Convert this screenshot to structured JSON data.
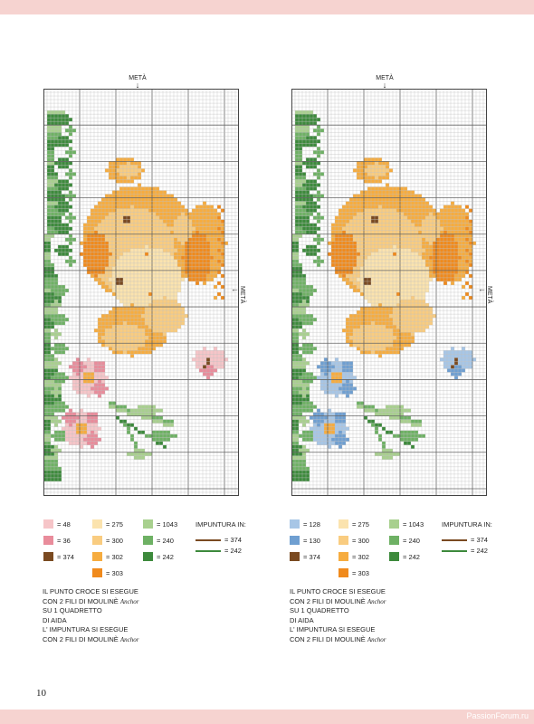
{
  "charts": [
    {
      "meta_top": "METÀ",
      "meta_side": "METÀ",
      "variant": "pink"
    },
    {
      "meta_top": "METÀ",
      "meta_side": "METÀ",
      "variant": "blue"
    }
  ],
  "colors": {
    "orange_dark": "#f08a1c",
    "orange_mid": "#f6ac3f",
    "orange_light": "#f9cc80",
    "cream": "#fbe3ae",
    "brown": "#7a4a21",
    "green_dark": "#3d8a3c",
    "green_mid": "#6eb164",
    "green_light": "#a8d08e",
    "pink_light": "#f6c5c8",
    "pink_mid": "#e98c9b",
    "blue_light": "#a7c6e6",
    "blue_mid": "#6f9fd1"
  },
  "legends": [
    {
      "swatches": [
        {
          "label": "= 48",
          "color": "#f6c5c8"
        },
        {
          "label": "= 36",
          "color": "#e98c9b"
        },
        {
          "label": "= 374",
          "color": "#7a4a21"
        },
        {
          "label": "= 275",
          "color": "#fbe3ae"
        },
        {
          "label": "= 300",
          "color": "#f9cc80"
        },
        {
          "label": "= 302",
          "color": "#f6ac3f"
        },
        {
          "label": "= 303",
          "color": "#f08a1c"
        },
        {
          "label": "= 1043",
          "color": "#a8d08e"
        },
        {
          "label": "= 240",
          "color": "#6eb164"
        },
        {
          "label": "= 242",
          "color": "#3d8a3c"
        }
      ],
      "backstitch_title": "IMPUNTURA IN:",
      "backstitch": [
        {
          "label": "= 374",
          "color": "#7a4a21"
        },
        {
          "label": "= 242",
          "color": "#3d8a3c"
        }
      ]
    },
    {
      "swatches": [
        {
          "label": "= 128",
          "color": "#a7c6e6"
        },
        {
          "label": "= 130",
          "color": "#6f9fd1"
        },
        {
          "label": "= 374",
          "color": "#7a4a21"
        },
        {
          "label": "= 275",
          "color": "#fbe3ae"
        },
        {
          "label": "= 300",
          "color": "#f9cc80"
        },
        {
          "label": "= 302",
          "color": "#f6ac3f"
        },
        {
          "label": "= 303",
          "color": "#f08a1c"
        },
        {
          "label": "= 1043",
          "color": "#a8d08e"
        },
        {
          "label": "= 240",
          "color": "#6eb164"
        },
        {
          "label": "= 242",
          "color": "#3d8a3c"
        }
      ],
      "backstitch_title": "IMPUNTURA IN:",
      "backstitch": [
        {
          "label": "= 374",
          "color": "#7a4a21"
        },
        {
          "label": "= 242",
          "color": "#3d8a3c"
        }
      ]
    }
  ],
  "instructions": [
    {
      "lines": [
        "IL PUNTO CROCE SI ESEGUE",
        "CON 2 FILI DI MOULINÈ",
        "SU 1 QUADRETTO",
        "DI AIDA",
        "L' IMPUNTURA SI ESEGUE",
        "CON 2 FILI DI MOULINÈ"
      ],
      "brand": "Anchor"
    },
    {
      "lines": [
        "IL PUNTO CROCE SI ESEGUE",
        "CON 2 FILI DI MOULINÈ",
        "SU 1 QUADRETTO",
        "DI AIDA",
        "L' IMPUNTURA SI ESEGUE",
        "CON 2 FILI DI MOULINÈ"
      ],
      "brand": "Anchor"
    }
  ],
  "page_number": "10",
  "watermark": "PassionForum.ru"
}
